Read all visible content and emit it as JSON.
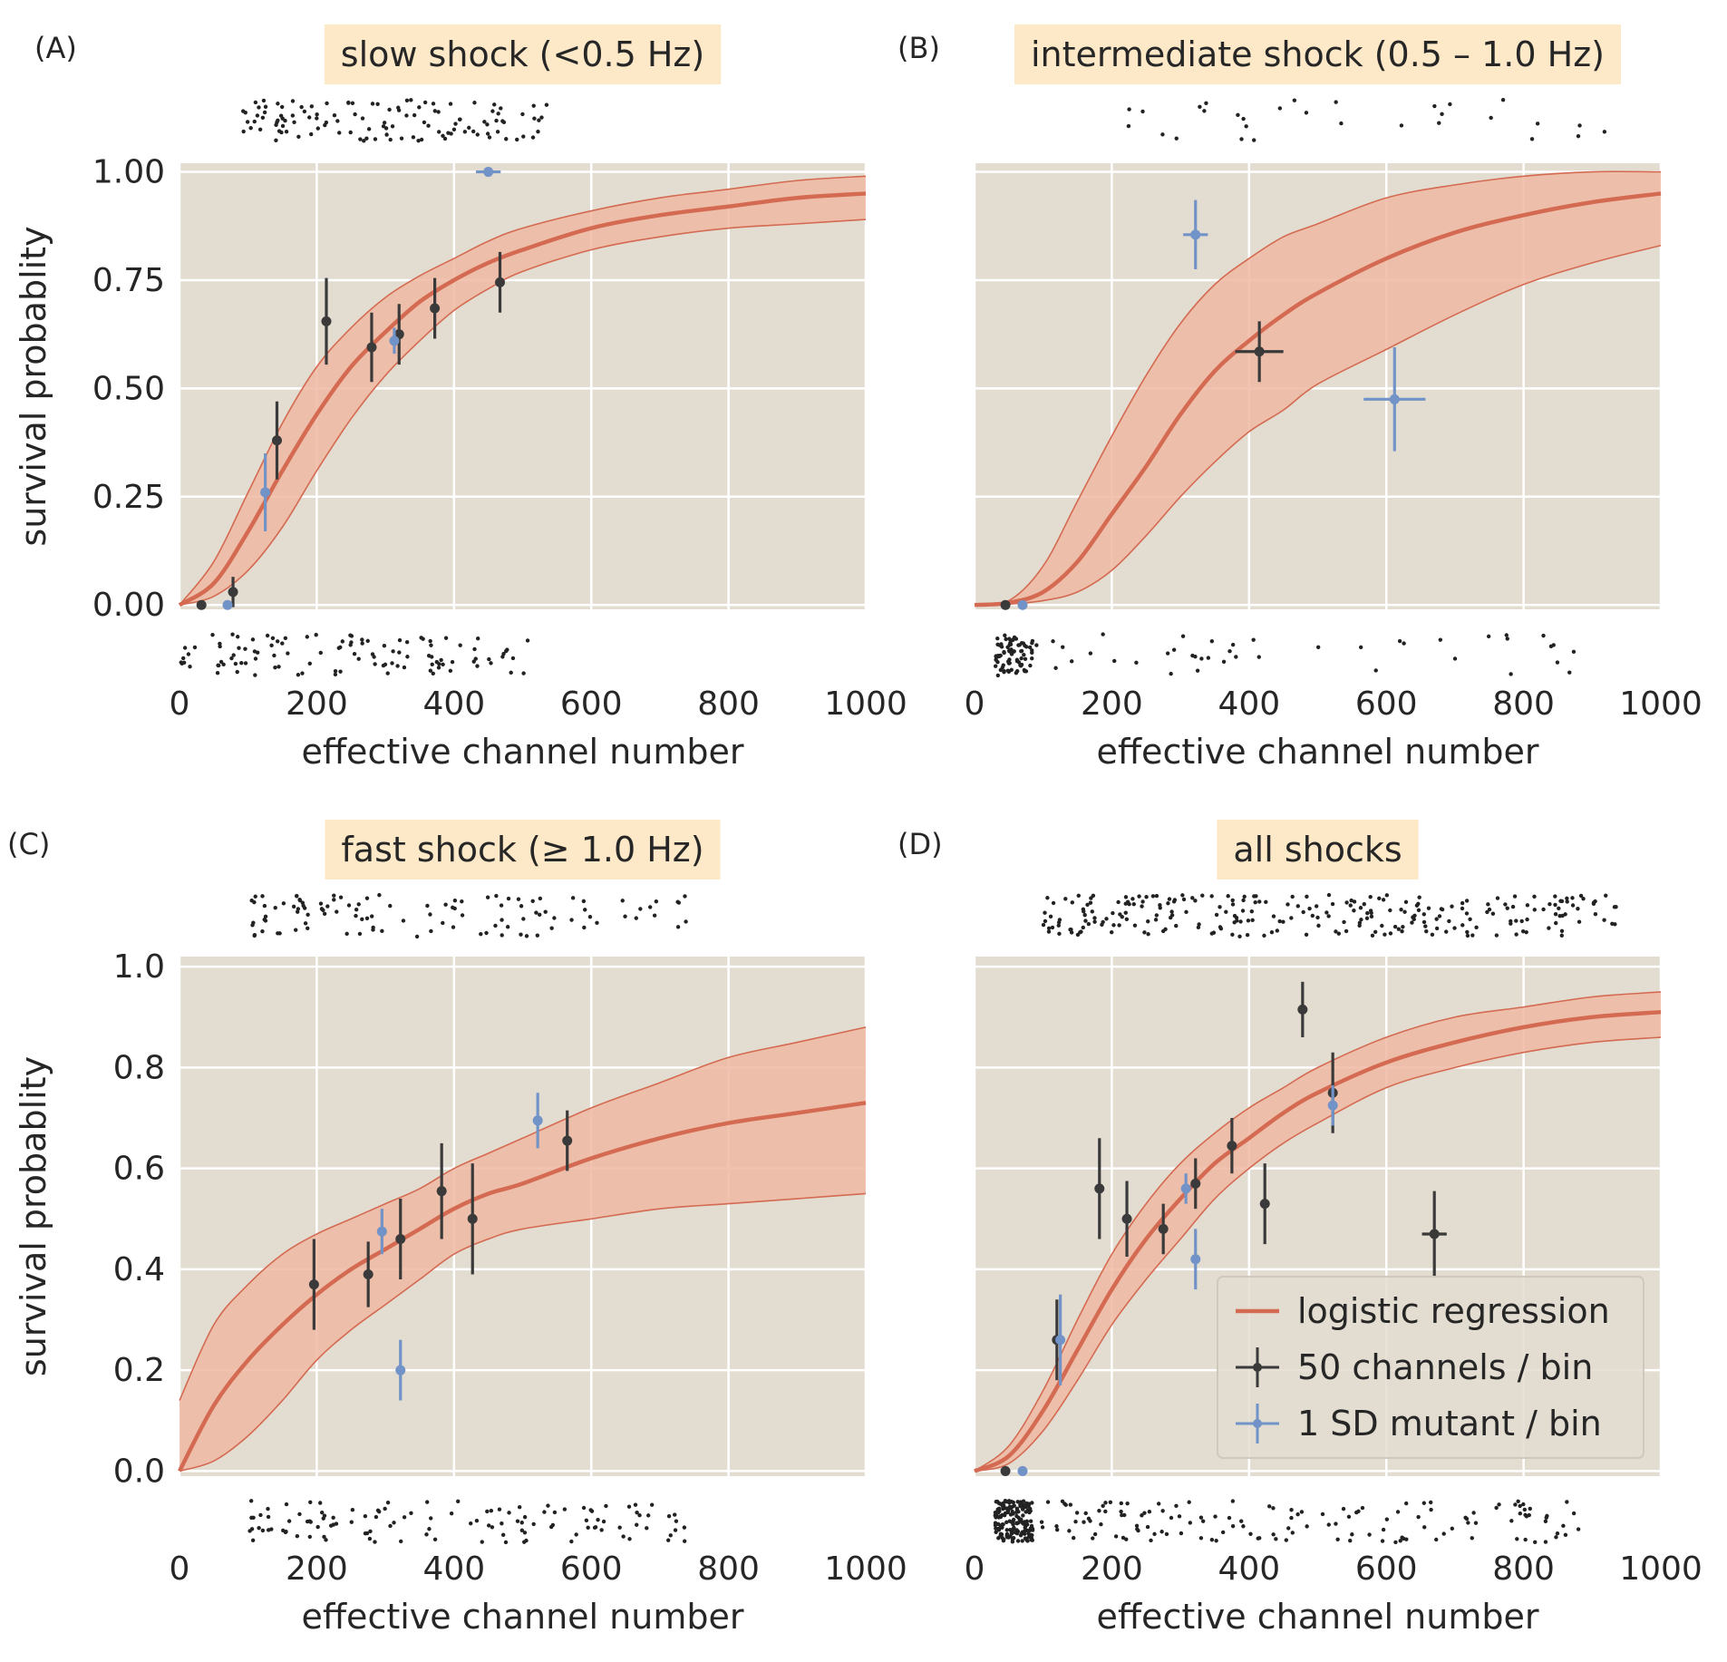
{
  "colors": {
    "fit": "#D46A52",
    "band": "#EEB8A2",
    "panel_bg": "#E3DCD0",
    "grid": "#FFFFFF",
    "title_bg": "#FDE8C8",
    "black_pts": "#3A3A3A",
    "blue_pts": "#7193C7"
  },
  "legend": {
    "logistic": "logistic regression",
    "binned": "50 channels / bin",
    "mutant": "1 SD mutant / bin"
  },
  "chart_data": [
    {
      "type": "line",
      "panel_label": "(A)",
      "title": "slow shock (<0.5 Hz)",
      "xlabel": "effective channel number",
      "ylabel": "survival probablity",
      "xlim": [
        0,
        1000
      ],
      "ylim": [
        -0.01,
        1.02
      ],
      "xticks": [
        0,
        200,
        400,
        600,
        800,
        1000
      ],
      "yticks": [
        0.0,
        0.25,
        0.5,
        0.75,
        1.0
      ],
      "ytick_labels": [
        "0.00",
        "0.25",
        "0.50",
        "0.75",
        "1.00"
      ],
      "grid": true,
      "fit": {
        "x": [
          0,
          50,
          100,
          150,
          200,
          250,
          300,
          350,
          400,
          450,
          500,
          600,
          700,
          800,
          900,
          1000
        ],
        "y": [
          0.0,
          0.05,
          0.17,
          0.31,
          0.44,
          0.55,
          0.63,
          0.7,
          0.75,
          0.79,
          0.82,
          0.87,
          0.9,
          0.92,
          0.94,
          0.95
        ],
        "upper": [
          0.0,
          0.1,
          0.26,
          0.42,
          0.55,
          0.64,
          0.71,
          0.76,
          0.8,
          0.84,
          0.87,
          0.91,
          0.94,
          0.96,
          0.98,
          0.99
        ],
        "lower": [
          0.0,
          0.02,
          0.08,
          0.18,
          0.31,
          0.43,
          0.53,
          0.61,
          0.68,
          0.73,
          0.77,
          0.82,
          0.85,
          0.87,
          0.88,
          0.89
        ]
      },
      "binned": [
        {
          "x": 32,
          "y": 0.0,
          "yerr": 0.0,
          "xerr": 0
        },
        {
          "x": 78,
          "y": 0.03,
          "yerr": 0.035,
          "xerr": 0
        },
        {
          "x": 142,
          "y": 0.38,
          "yerr": 0.09,
          "xerr": 0
        },
        {
          "x": 214,
          "y": 0.655,
          "yerr": 0.1,
          "xerr": 0
        },
        {
          "x": 280,
          "y": 0.595,
          "yerr": 0.08,
          "xerr": 0
        },
        {
          "x": 320,
          "y": 0.625,
          "yerr": 0.07,
          "xerr": 0
        },
        {
          "x": 372,
          "y": 0.685,
          "yerr": 0.07,
          "xerr": 0
        },
        {
          "x": 467,
          "y": 0.745,
          "yerr": 0.07,
          "xerr": 0
        }
      ],
      "mutant": [
        {
          "x": 70,
          "y": 0.0,
          "yerr": 0.0,
          "xerr": 0
        },
        {
          "x": 125,
          "y": 0.26,
          "yerr": 0.09,
          "xerr": 0
        },
        {
          "x": 313,
          "y": 0.61,
          "yerr": 0.03,
          "xerr": 0
        },
        {
          "x": 450,
          "y": 1.0,
          "yerr": 0.0,
          "xerr": 18
        }
      ],
      "rug_top_range": [
        90,
        545
      ],
      "rug_bottom_range": [
        0,
        510
      ],
      "rug_top_n": 120,
      "rug_bottom_n": 110
    },
    {
      "type": "line",
      "panel_label": "(B)",
      "title": "intermediate shock (0.5 – 1.0 Hz)",
      "xlabel": "effective channel number",
      "ylabel": "",
      "xlim": [
        0,
        1000
      ],
      "ylim": [
        -0.01,
        1.02
      ],
      "xticks": [
        0,
        200,
        400,
        600,
        800,
        1000
      ],
      "yticks": [
        0.0,
        0.25,
        0.5,
        0.75,
        1.0
      ],
      "ytick_labels": [
        "",
        "",
        "",
        "",
        ""
      ],
      "grid": true,
      "fit": {
        "x": [
          0,
          50,
          100,
          150,
          200,
          250,
          300,
          350,
          400,
          450,
          500,
          600,
          700,
          800,
          900,
          1000
        ],
        "y": [
          0.0,
          0.005,
          0.03,
          0.1,
          0.21,
          0.32,
          0.44,
          0.54,
          0.61,
          0.67,
          0.72,
          0.8,
          0.86,
          0.9,
          0.93,
          0.95
        ],
        "upper": [
          0.0,
          0.01,
          0.09,
          0.24,
          0.39,
          0.53,
          0.65,
          0.74,
          0.8,
          0.85,
          0.88,
          0.94,
          0.97,
          0.99,
          1.0,
          1.0
        ],
        "lower": [
          0.0,
          0.002,
          0.01,
          0.03,
          0.08,
          0.16,
          0.25,
          0.33,
          0.4,
          0.45,
          0.51,
          0.59,
          0.67,
          0.74,
          0.79,
          0.83
        ]
      },
      "binned": [
        {
          "x": 45,
          "y": 0.0,
          "yerr": 0.0,
          "xerr": 0
        },
        {
          "x": 415,
          "y": 0.585,
          "yerr": 0.07,
          "xerr": 35
        }
      ],
      "mutant": [
        {
          "x": 70,
          "y": 0.0,
          "yerr": 0.0,
          "xerr": 0
        },
        {
          "x": 322,
          "y": 0.855,
          "yerr": 0.08,
          "xerr": 18
        },
        {
          "x": 612,
          "y": 0.475,
          "yerr": 0.12,
          "xerr": 45
        }
      ],
      "rug_top_range": [
        200,
        940
      ],
      "rug_bottom_range": [
        30,
        880
      ],
      "rug_top_n": 30,
      "rug_bottom_n": 120
    },
    {
      "type": "line",
      "panel_label": "(C)",
      "title": "fast shock (≥ 1.0 Hz)",
      "xlabel": "effective channel number",
      "ylabel": "survival probablity",
      "xlim": [
        0,
        1000
      ],
      "ylim": [
        -0.01,
        1.02
      ],
      "xticks": [
        0,
        200,
        400,
        600,
        800,
        1000
      ],
      "yticks": [
        0.0,
        0.2,
        0.4,
        0.6,
        0.8,
        1.0
      ],
      "ytick_labels": [
        "0.0",
        "0.2",
        "0.4",
        "0.6",
        "0.8",
        "1.0"
      ],
      "grid": true,
      "fit": {
        "x": [
          0,
          50,
          100,
          150,
          200,
          250,
          300,
          350,
          400,
          450,
          500,
          600,
          700,
          800,
          900,
          1000
        ],
        "y": [
          0.0,
          0.13,
          0.22,
          0.29,
          0.35,
          0.4,
          0.44,
          0.48,
          0.52,
          0.55,
          0.57,
          0.62,
          0.66,
          0.69,
          0.71,
          0.73
        ],
        "upper": [
          0.14,
          0.29,
          0.37,
          0.43,
          0.47,
          0.5,
          0.53,
          0.56,
          0.6,
          0.63,
          0.66,
          0.72,
          0.77,
          0.82,
          0.85,
          0.88
        ],
        "lower": [
          0.0,
          0.02,
          0.07,
          0.14,
          0.22,
          0.28,
          0.33,
          0.38,
          0.43,
          0.46,
          0.48,
          0.5,
          0.52,
          0.53,
          0.54,
          0.55
        ]
      },
      "binned": [
        {
          "x": 196,
          "y": 0.37,
          "yerr": 0.09,
          "xerr": 0
        },
        {
          "x": 275,
          "y": 0.39,
          "yerr": 0.065,
          "xerr": 0
        },
        {
          "x": 322,
          "y": 0.46,
          "yerr": 0.08,
          "xerr": 0
        },
        {
          "x": 382,
          "y": 0.555,
          "yerr": 0.095,
          "xerr": 0
        },
        {
          "x": 427,
          "y": 0.5,
          "yerr": 0.11,
          "xerr": 0
        },
        {
          "x": 565,
          "y": 0.655,
          "yerr": 0.06,
          "xerr": 0
        }
      ],
      "mutant": [
        {
          "x": 295,
          "y": 0.475,
          "yerr": 0.045,
          "xerr": 0
        },
        {
          "x": 322,
          "y": 0.2,
          "yerr": 0.06,
          "xerr": 0
        },
        {
          "x": 522,
          "y": 0.695,
          "yerr": 0.055,
          "xerr": 0
        }
      ],
      "rug_top_range": [
        105,
        740
      ],
      "rug_bottom_range": [
        100,
        740
      ],
      "rug_top_n": 110,
      "rug_bottom_n": 120
    },
    {
      "type": "line",
      "panel_label": "(D)",
      "title": "all shocks",
      "xlabel": "effective channel number",
      "ylabel": "",
      "xlim": [
        0,
        1000
      ],
      "ylim": [
        -0.01,
        1.02
      ],
      "xticks": [
        0,
        200,
        400,
        600,
        800,
        1000
      ],
      "yticks": [
        0.0,
        0.2,
        0.4,
        0.6,
        0.8,
        1.0
      ],
      "ytick_labels": [
        "",
        "",
        "",
        "",
        "",
        ""
      ],
      "grid": true,
      "legend_position": "lower-right",
      "fit": {
        "x": [
          0,
          50,
          100,
          150,
          200,
          250,
          300,
          350,
          400,
          450,
          500,
          600,
          700,
          800,
          900,
          1000
        ],
        "y": [
          0.0,
          0.03,
          0.12,
          0.24,
          0.36,
          0.46,
          0.54,
          0.61,
          0.66,
          0.71,
          0.75,
          0.81,
          0.85,
          0.88,
          0.9,
          0.91
        ],
        "upper": [
          0.0,
          0.05,
          0.16,
          0.3,
          0.43,
          0.53,
          0.61,
          0.67,
          0.72,
          0.76,
          0.8,
          0.86,
          0.9,
          0.92,
          0.94,
          0.95
        ],
        "lower": [
          0.0,
          0.015,
          0.08,
          0.18,
          0.29,
          0.38,
          0.46,
          0.54,
          0.6,
          0.65,
          0.69,
          0.76,
          0.8,
          0.83,
          0.85,
          0.86
        ]
      },
      "binned": [
        {
          "x": 45,
          "y": 0.0,
          "yerr": 0.0,
          "xerr": 0
        },
        {
          "x": 120,
          "y": 0.26,
          "yerr": 0.08,
          "xerr": 0
        },
        {
          "x": 182,
          "y": 0.56,
          "yerr": 0.1,
          "xerr": 0
        },
        {
          "x": 222,
          "y": 0.5,
          "yerr": 0.075,
          "xerr": 0
        },
        {
          "x": 275,
          "y": 0.48,
          "yerr": 0.05,
          "xerr": 0
        },
        {
          "x": 322,
          "y": 0.57,
          "yerr": 0.05,
          "xerr": 0
        },
        {
          "x": 375,
          "y": 0.645,
          "yerr": 0.055,
          "xerr": 0
        },
        {
          "x": 423,
          "y": 0.53,
          "yerr": 0.08,
          "xerr": 0
        },
        {
          "x": 478,
          "y": 0.915,
          "yerr": 0.055,
          "xerr": 0
        },
        {
          "x": 522,
          "y": 0.75,
          "yerr": 0.08,
          "xerr": 0
        },
        {
          "x": 670,
          "y": 0.47,
          "yerr": 0.085,
          "xerr": 18
        }
      ],
      "mutant": [
        {
          "x": 70,
          "y": 0.0,
          "yerr": 0.0,
          "xerr": 0
        },
        {
          "x": 125,
          "y": 0.26,
          "yerr": 0.09,
          "xerr": 0
        },
        {
          "x": 308,
          "y": 0.56,
          "yerr": 0.03,
          "xerr": 0
        },
        {
          "x": 322,
          "y": 0.42,
          "yerr": 0.06,
          "xerr": 0
        },
        {
          "x": 522,
          "y": 0.725,
          "yerr": 0.04,
          "xerr": 0
        }
      ],
      "rug_top_range": [
        100,
        940
      ],
      "rug_bottom_range": [
        30,
        880
      ],
      "rug_top_n": 260,
      "rug_bottom_n": 300
    }
  ]
}
